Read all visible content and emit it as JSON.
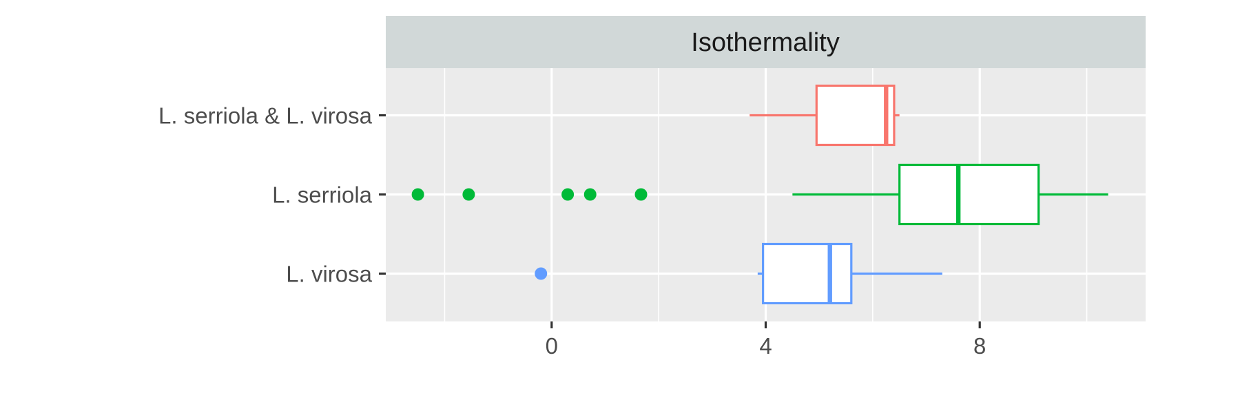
{
  "chart_data": {
    "type": "boxplot",
    "facet_title": "Isothermality",
    "xlabel": "",
    "ylabel": "",
    "xlim": [
      -3.1,
      11.1
    ],
    "x_ticks": [
      0,
      4,
      8
    ],
    "x_tick_labels": [
      "0",
      "4",
      "8"
    ],
    "categories": [
      "L. serriola & L. virosa",
      "L. serriola",
      "L. virosa"
    ],
    "grid": true,
    "legend": "none",
    "series": [
      {
        "category": "L. serriola & L. virosa",
        "color": "#F8766D",
        "whisker_low": 3.7,
        "q1": 4.95,
        "median": 6.25,
        "q3": 6.4,
        "whisker_high": 6.5,
        "outliers": []
      },
      {
        "category": "L. serriola",
        "color": "#00BA38",
        "whisker_low": 4.5,
        "q1": 6.5,
        "median": 7.6,
        "q3": 9.1,
        "whisker_high": 10.4,
        "outliers": [
          -2.5,
          -1.55,
          0.3,
          0.72,
          1.67
        ]
      },
      {
        "category": "L. virosa",
        "color": "#619CFF",
        "whisker_low": 3.85,
        "q1": 3.95,
        "median": 5.2,
        "q3": 5.6,
        "whisker_high": 7.3,
        "outliers": [
          -0.2
        ]
      }
    ]
  }
}
